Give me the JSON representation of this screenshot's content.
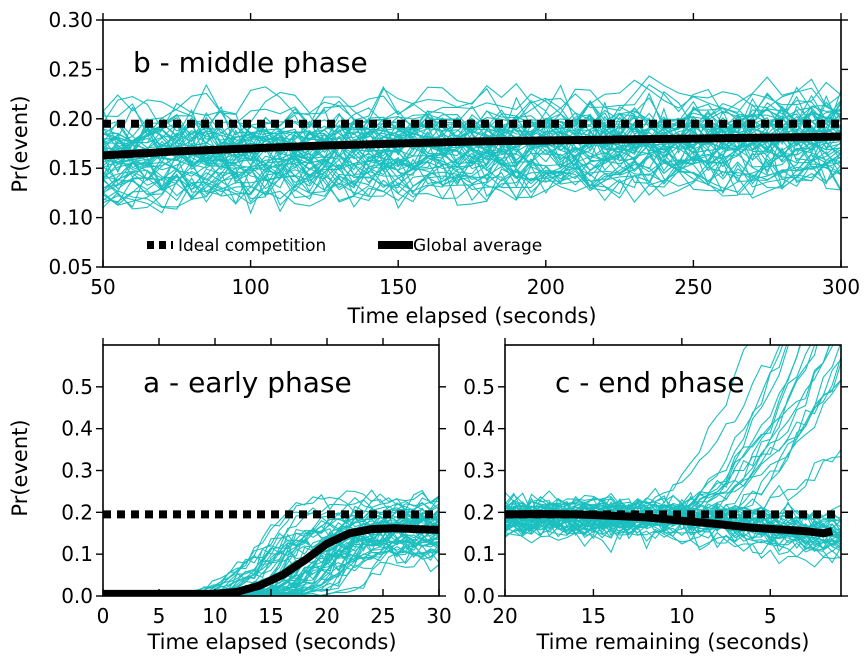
{
  "figure": {
    "colors": {
      "trace": "#1bbfbf",
      "average": "#000000",
      "ideal": "#000000",
      "axes": "#000000"
    }
  },
  "chart_data": [
    {
      "id": "b",
      "type": "line",
      "title": "b - middle phase",
      "xlabel": "Time elapsed (seconds)",
      "ylabel": "Pr(event)",
      "xlim": [
        50,
        300
      ],
      "ylim": [
        0.05,
        0.3
      ],
      "xticks": [
        50,
        100,
        150,
        200,
        250,
        300
      ],
      "xtick_labels": [
        "50",
        "100",
        "150",
        "200",
        "250",
        "300"
      ],
      "yticks": [
        0.05,
        0.1,
        0.15,
        0.2,
        0.25,
        0.3
      ],
      "ytick_labels": [
        "0.05",
        "0.10",
        "0.15",
        "0.20",
        "0.25",
        "0.30"
      ],
      "grid": false,
      "legend": {
        "position": "lower-left",
        "entries": [
          "Ideal competition",
          "Global average"
        ]
      },
      "series": [
        {
          "name": "Ideal competition",
          "style": "dotted",
          "x": [
            50,
            300
          ],
          "values": [
            0.195,
            0.195
          ]
        },
        {
          "name": "Global average",
          "style": "thick",
          "x": [
            50,
            75,
            100,
            125,
            150,
            175,
            200,
            225,
            250,
            275,
            300
          ],
          "values": [
            0.163,
            0.167,
            0.17,
            0.173,
            0.175,
            0.177,
            0.178,
            0.179,
            0.18,
            0.181,
            0.182
          ]
        }
      ],
      "traces": {
        "count": 60,
        "band_x": [
          50,
          300
        ],
        "center": [
          0.163,
          0.182
        ],
        "spread": 0.022
      }
    },
    {
      "id": "a",
      "type": "line",
      "title": "a - early phase",
      "xlabel": "Time elapsed (seconds)",
      "ylabel": "Pr(event)",
      "xlim": [
        0,
        30
      ],
      "ylim": [
        0.0,
        0.6
      ],
      "xticks": [
        0,
        5,
        10,
        15,
        20,
        25,
        30
      ],
      "xtick_labels": [
        "0",
        "5",
        "10",
        "15",
        "20",
        "25",
        "30"
      ],
      "yticks": [
        0.0,
        0.1,
        0.2,
        0.3,
        0.4,
        0.5
      ],
      "ytick_labels": [
        "0.0",
        "0.1",
        "0.2",
        "0.3",
        "0.4",
        "0.5"
      ],
      "grid": false,
      "series": [
        {
          "name": "Ideal competition",
          "style": "dotted",
          "x": [
            0,
            30
          ],
          "values": [
            0.195,
            0.195
          ]
        },
        {
          "name": "Global average",
          "style": "thick",
          "x": [
            0,
            5,
            10,
            12,
            14,
            16,
            18,
            20,
            22,
            24,
            26,
            28,
            30
          ],
          "values": [
            0.005,
            0.005,
            0.005,
            0.01,
            0.025,
            0.05,
            0.085,
            0.125,
            0.15,
            0.16,
            0.162,
            0.16,
            0.158
          ]
        }
      ],
      "traces": {
        "count": 60
      }
    },
    {
      "id": "c",
      "type": "line",
      "title": "c - end phase",
      "xlabel": "Time remaining (seconds)",
      "ylabel": "",
      "xlim": [
        20,
        1
      ],
      "ylim": [
        0.0,
        0.6
      ],
      "xticks": [
        20,
        15,
        10,
        5
      ],
      "xtick_labels": [
        "20",
        "15",
        "10",
        "5"
      ],
      "yticks": [
        0.0,
        0.1,
        0.2,
        0.3,
        0.4,
        0.5
      ],
      "ytick_labels": [
        "0.0",
        "0.1",
        "0.2",
        "0.3",
        "0.4",
        "0.5"
      ],
      "grid": false,
      "series": [
        {
          "name": "Ideal competition",
          "style": "dotted",
          "x": [
            20,
            1
          ],
          "values": [
            0.195,
            0.195
          ]
        },
        {
          "name": "Global average",
          "style": "thick",
          "x": [
            20,
            18,
            16,
            14,
            12,
            10,
            8,
            6,
            4,
            3,
            2,
            1.5
          ],
          "values": [
            0.195,
            0.196,
            0.195,
            0.192,
            0.188,
            0.18,
            0.172,
            0.163,
            0.158,
            0.155,
            0.15,
            0.155
          ]
        }
      ],
      "traces": {
        "count": 60
      }
    }
  ]
}
